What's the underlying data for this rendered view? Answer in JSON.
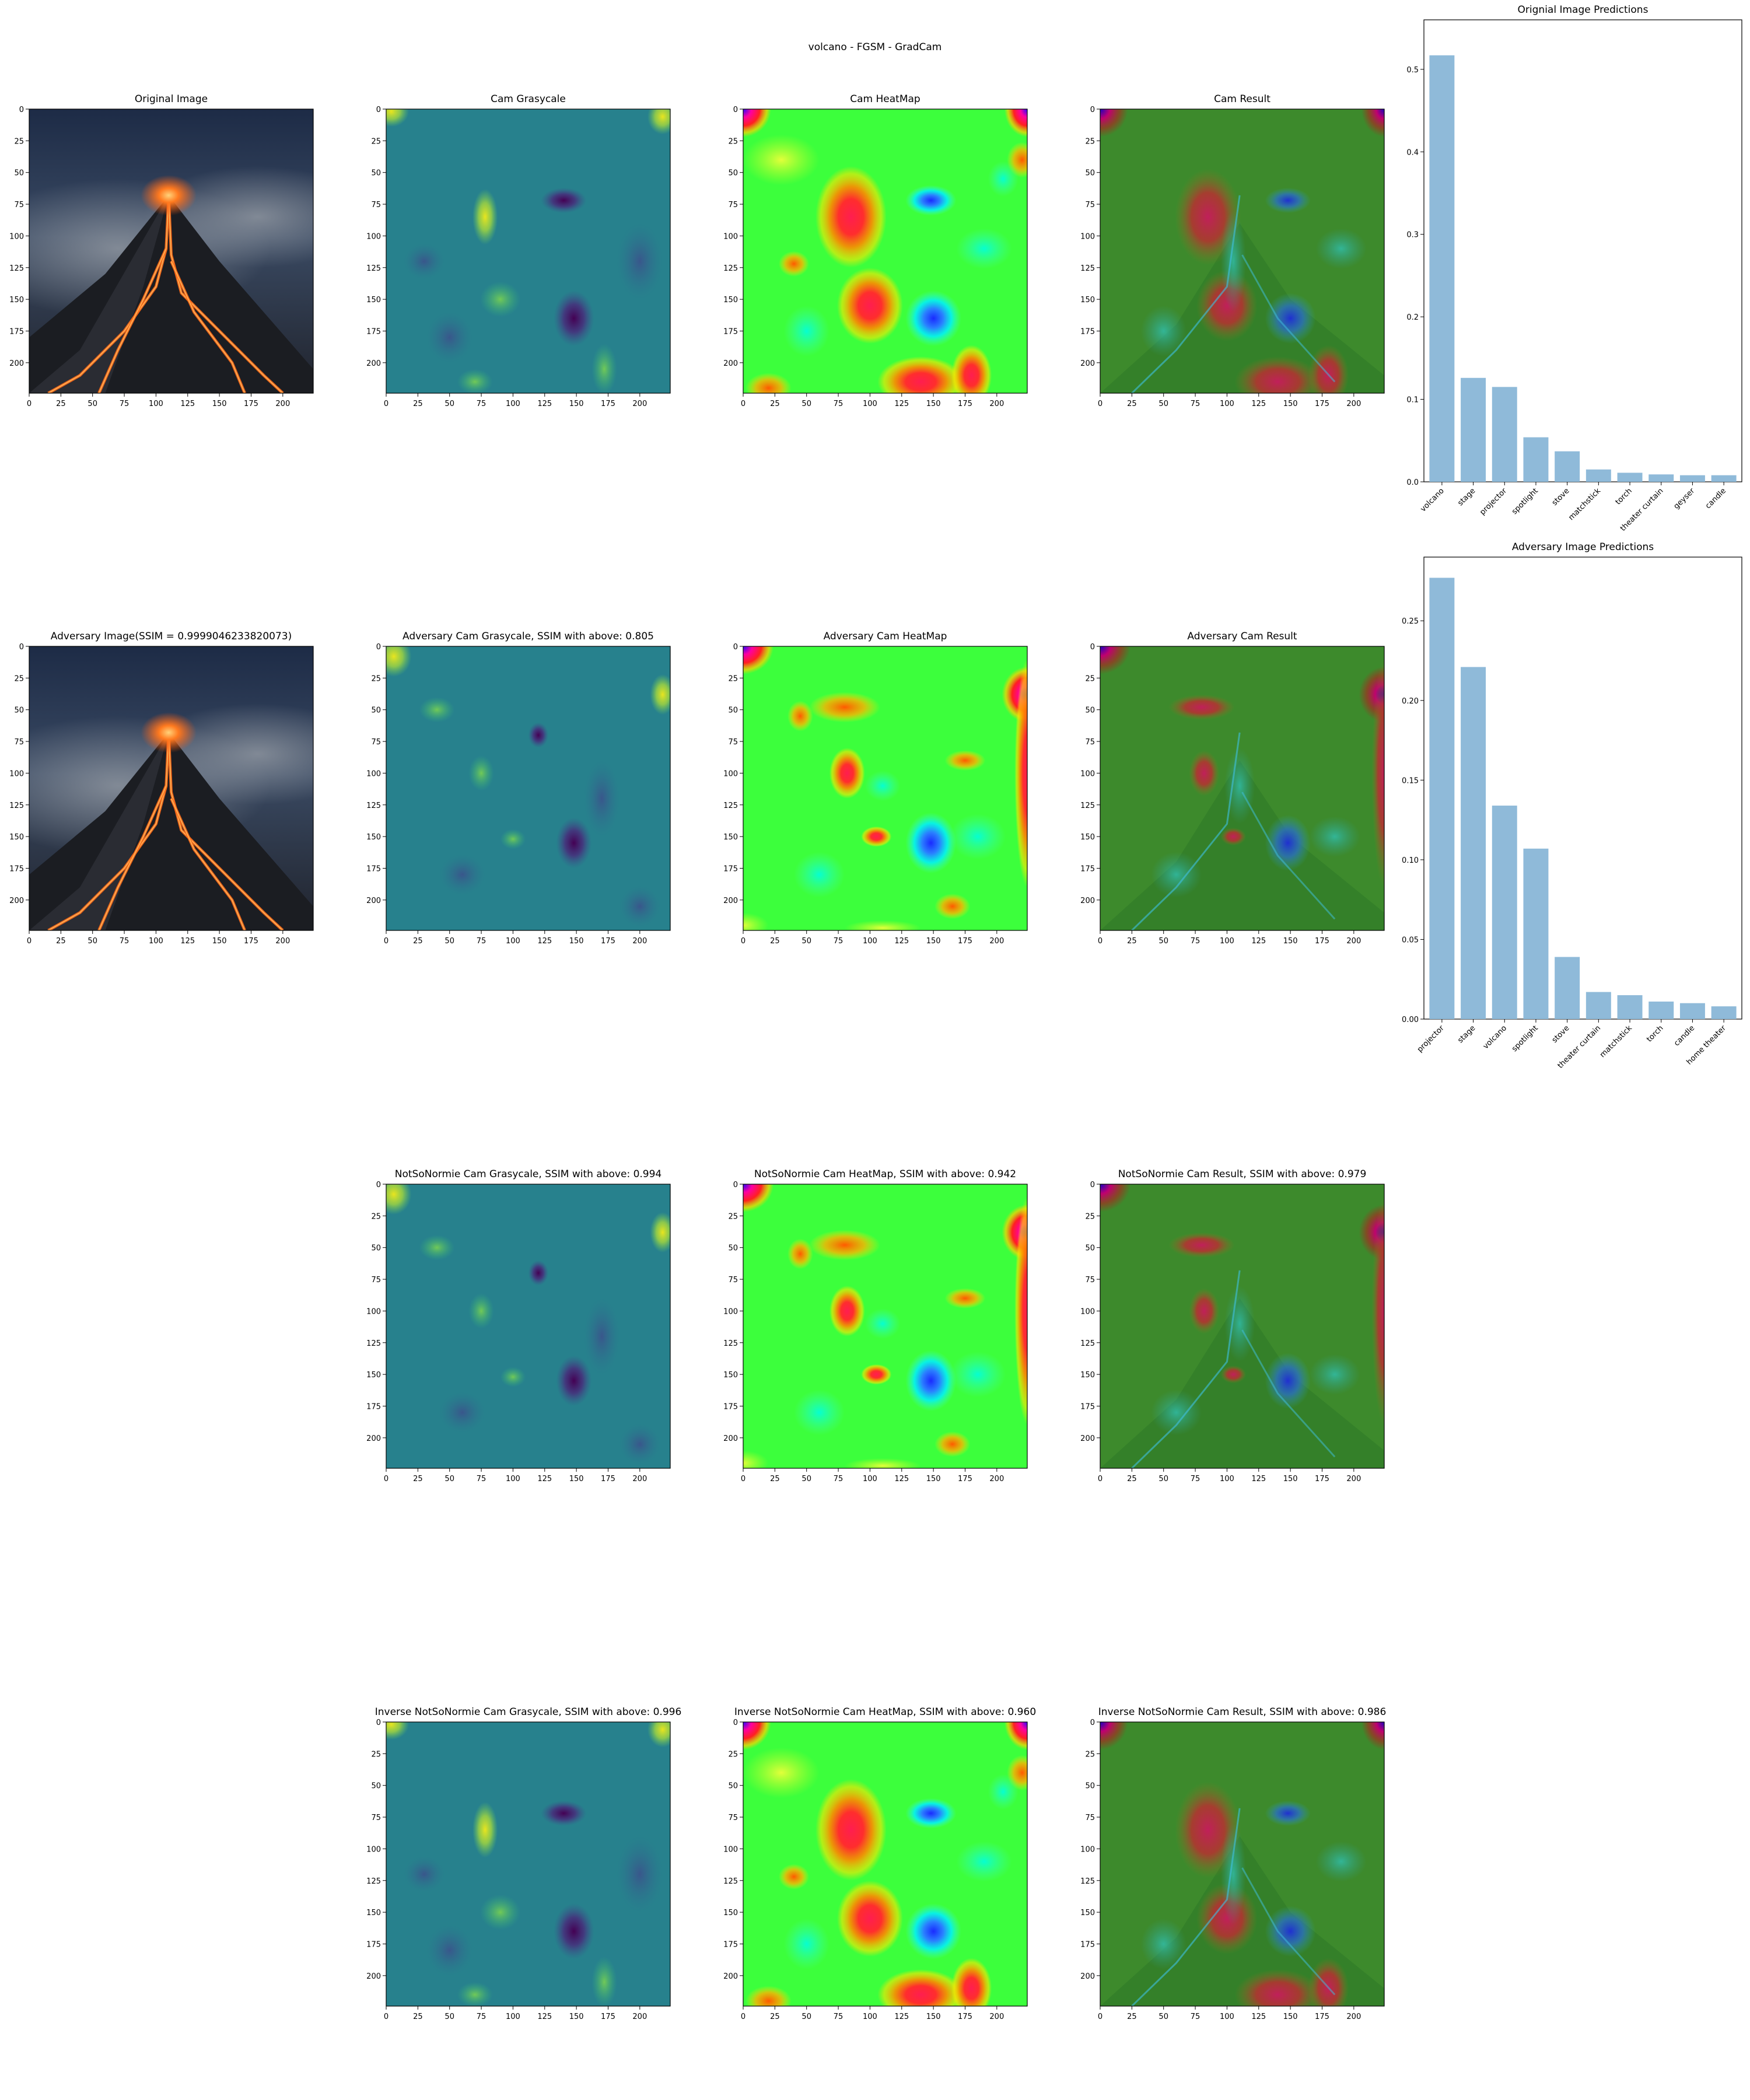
{
  "suptitle": "volcano - FGSM - GradCam",
  "image_panels": [
    {
      "id": "orig-image",
      "title": "Original Image",
      "kind": "photo",
      "row": 0,
      "col": 0
    },
    {
      "id": "cam-gray",
      "title": "Cam Grasycale",
      "kind": "gray",
      "variant": "orig",
      "row": 0,
      "col": 1
    },
    {
      "id": "cam-heat",
      "title": "Cam HeatMap",
      "kind": "heat",
      "variant": "orig",
      "row": 0,
      "col": 2
    },
    {
      "id": "cam-result",
      "title": "Cam Result",
      "kind": "result",
      "variant": "orig",
      "row": 0,
      "col": 3
    },
    {
      "id": "adv-image",
      "title": "Adversary Image(SSIM = 0.9999046233820073)",
      "kind": "photo",
      "row": 1,
      "col": 0
    },
    {
      "id": "adv-cam-gray",
      "title": "Adversary Cam Grasycale, SSIM with above: 0.805",
      "kind": "gray",
      "variant": "adv",
      "row": 1,
      "col": 1
    },
    {
      "id": "adv-cam-heat",
      "title": "Adversary Cam HeatMap",
      "kind": "heat",
      "variant": "adv",
      "row": 1,
      "col": 2
    },
    {
      "id": "adv-cam-result",
      "title": "Adversary Cam Result",
      "kind": "result",
      "variant": "adv",
      "row": 1,
      "col": 3
    },
    {
      "id": "nsn-cam-gray",
      "title": "NotSoNormie Cam Grasycale, SSIM with above: 0.994",
      "kind": "gray",
      "variant": "adv",
      "row": 2,
      "col": 1
    },
    {
      "id": "nsn-cam-heat",
      "title": "NotSoNormie Cam HeatMap, SSIM with above: 0.942",
      "kind": "heat",
      "variant": "adv",
      "row": 2,
      "col": 2
    },
    {
      "id": "nsn-cam-result",
      "title": "NotSoNormie Cam Result, SSIM with above: 0.979",
      "kind": "result",
      "variant": "adv",
      "row": 2,
      "col": 3
    },
    {
      "id": "inv-cam-gray",
      "title": "Inverse NotSoNormie Cam Grasycale, SSIM with above: 0.996",
      "kind": "gray",
      "variant": "orig",
      "row": 3,
      "col": 1
    },
    {
      "id": "inv-cam-heat",
      "title": "Inverse NotSoNormie Cam HeatMap, SSIM with above: 0.960",
      "kind": "heat",
      "variant": "orig",
      "row": 3,
      "col": 2
    },
    {
      "id": "inv-cam-result",
      "title": "Inverse NotSoNormie Cam Result, SSIM with above: 0.986",
      "kind": "result",
      "variant": "orig",
      "row": 3,
      "col": 3
    }
  ],
  "image_axes": {
    "x_ticks": [
      "0",
      "25",
      "50",
      "75",
      "100",
      "125",
      "150",
      "175",
      "200"
    ],
    "y_ticks": [
      "0",
      "25",
      "50",
      "75",
      "100",
      "125",
      "150",
      "175",
      "200"
    ],
    "range": [
      0,
      224
    ]
  },
  "bar_color": "#8fbad9",
  "chart_data": [
    {
      "type": "bar",
      "title": "Orignial Image Predictions",
      "categories": [
        "volcano",
        "stage",
        "projector",
        "spotlight",
        "stove",
        "matchstick",
        "torch",
        "theater curtain",
        "geyser",
        "candle"
      ],
      "values": [
        0.517,
        0.126,
        0.115,
        0.054,
        0.037,
        0.015,
        0.011,
        0.009,
        0.008,
        0.008
      ],
      "ylim": [
        0,
        0.56
      ],
      "yticks": [
        0.0,
        0.1,
        0.2,
        0.3,
        0.4,
        0.5
      ],
      "ytick_labels": [
        "0.0",
        "0.1",
        "0.2",
        "0.3",
        "0.4",
        "0.5"
      ],
      "xlabel": "",
      "ylabel": "",
      "grid": false
    },
    {
      "type": "bar",
      "title": "Adversary Image Predictions",
      "categories": [
        "projector",
        "stage",
        "volcano",
        "spotlight",
        "stove",
        "theater curtain",
        "matchstick",
        "torch",
        "candle",
        "home theater"
      ],
      "values": [
        0.277,
        0.221,
        0.134,
        0.107,
        0.039,
        0.017,
        0.015,
        0.011,
        0.01,
        0.008
      ],
      "ylim": [
        0,
        0.29
      ],
      "yticks": [
        0.0,
        0.05,
        0.1,
        0.15,
        0.2,
        0.25
      ],
      "ytick_labels": [
        "0.00",
        "0.05",
        "0.10",
        "0.15",
        "0.20",
        "0.25"
      ],
      "xlabel": "",
      "ylabel": "",
      "grid": false
    }
  ]
}
